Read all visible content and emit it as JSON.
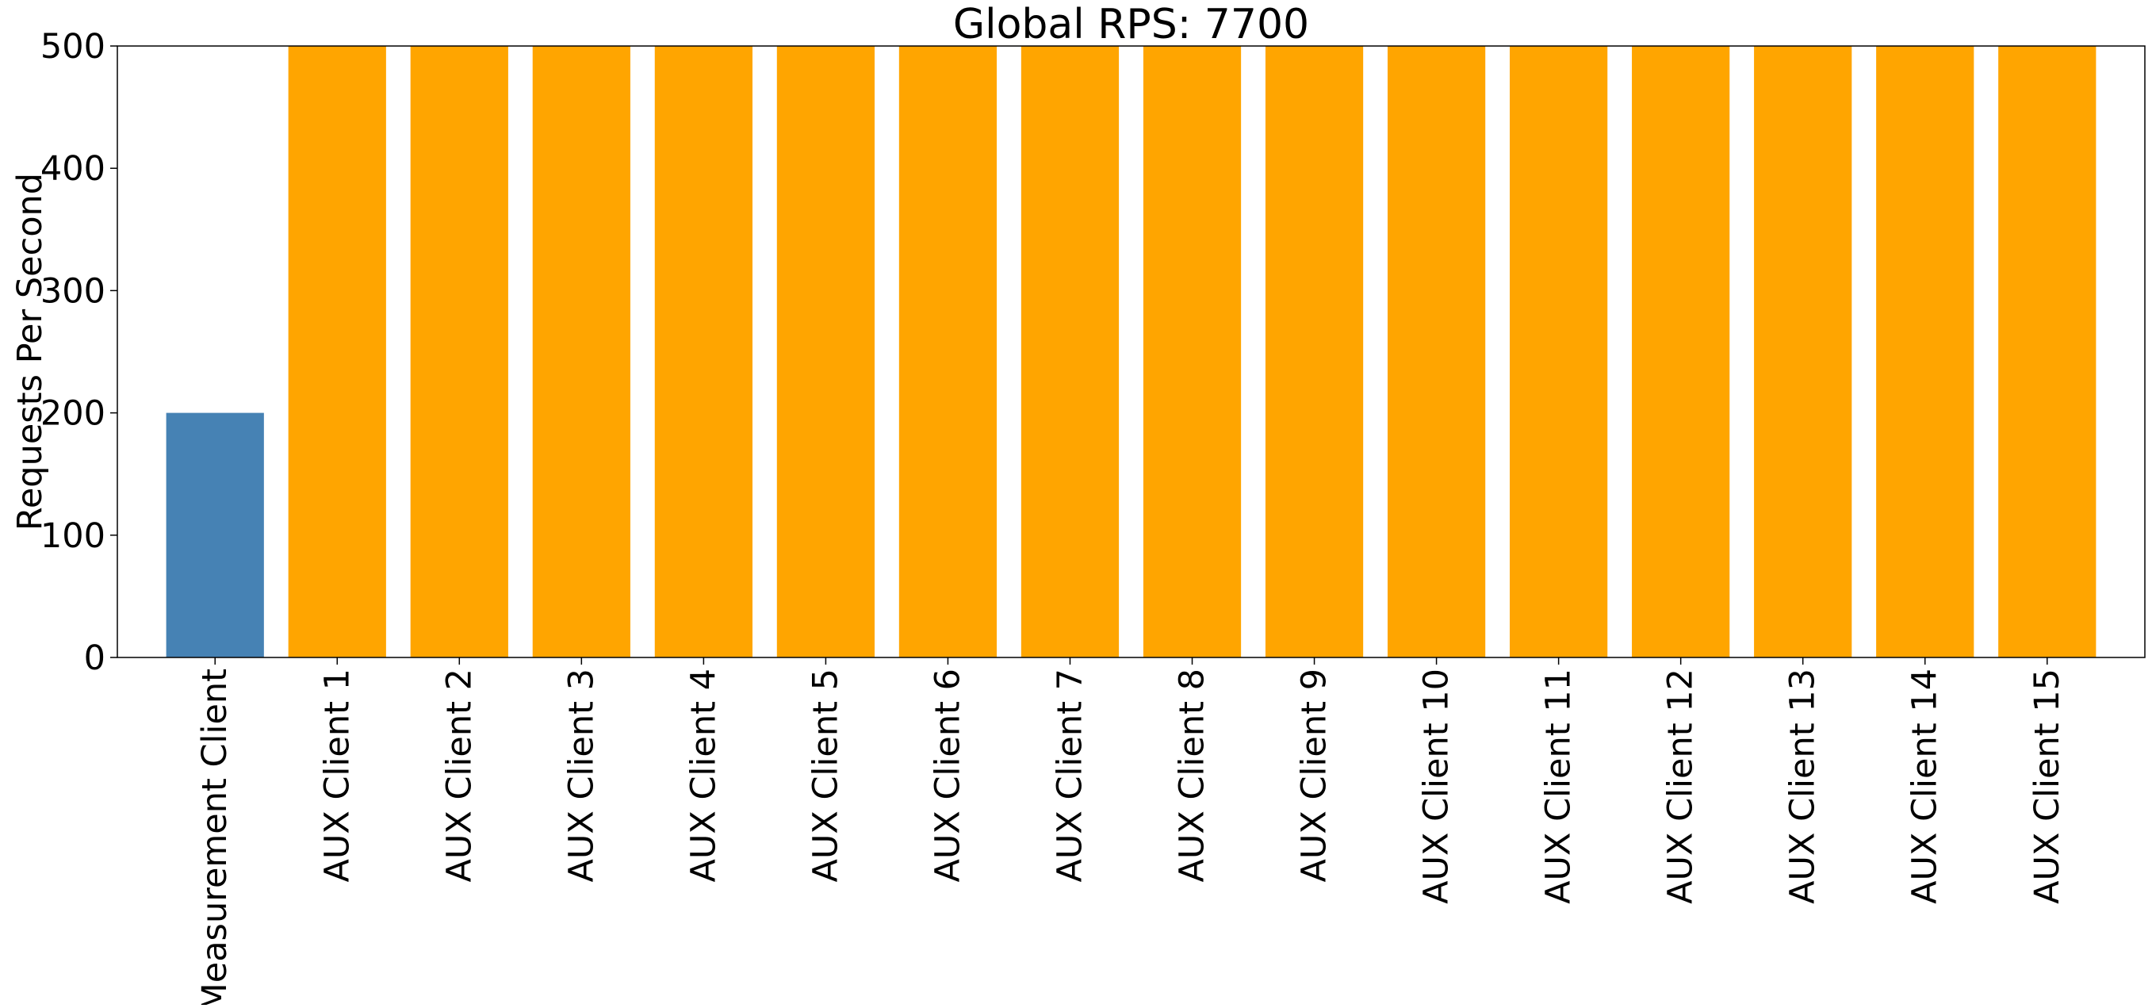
{
  "chart_data": {
    "type": "bar",
    "title": "Global RPS: 7700",
    "xlabel": "",
    "ylabel": "Requests Per Second",
    "ylim": [
      0,
      500
    ],
    "yticks": [
      0,
      100,
      200,
      300,
      400,
      500
    ],
    "grid": false,
    "categories": [
      "Measurement Client",
      "AUX Client 1",
      "AUX Client 2",
      "AUX Client 3",
      "AUX Client 4",
      "AUX Client 5",
      "AUX Client 6",
      "AUX Client 7",
      "AUX Client 8",
      "AUX Client 9",
      "AUX Client 10",
      "AUX Client 11",
      "AUX Client 12",
      "AUX Client 13",
      "AUX Client 14",
      "AUX Client 15"
    ],
    "values": [
      200,
      500,
      500,
      500,
      500,
      500,
      500,
      500,
      500,
      500,
      500,
      500,
      500,
      500,
      500,
      500
    ],
    "bar_colors": [
      "#4682b4",
      "#ffa500",
      "#ffa500",
      "#ffa500",
      "#ffa500",
      "#ffa500",
      "#ffa500",
      "#ffa500",
      "#ffa500",
      "#ffa500",
      "#ffa500",
      "#ffa500",
      "#ffa500",
      "#ffa500",
      "#ffa500",
      "#ffa500"
    ]
  }
}
